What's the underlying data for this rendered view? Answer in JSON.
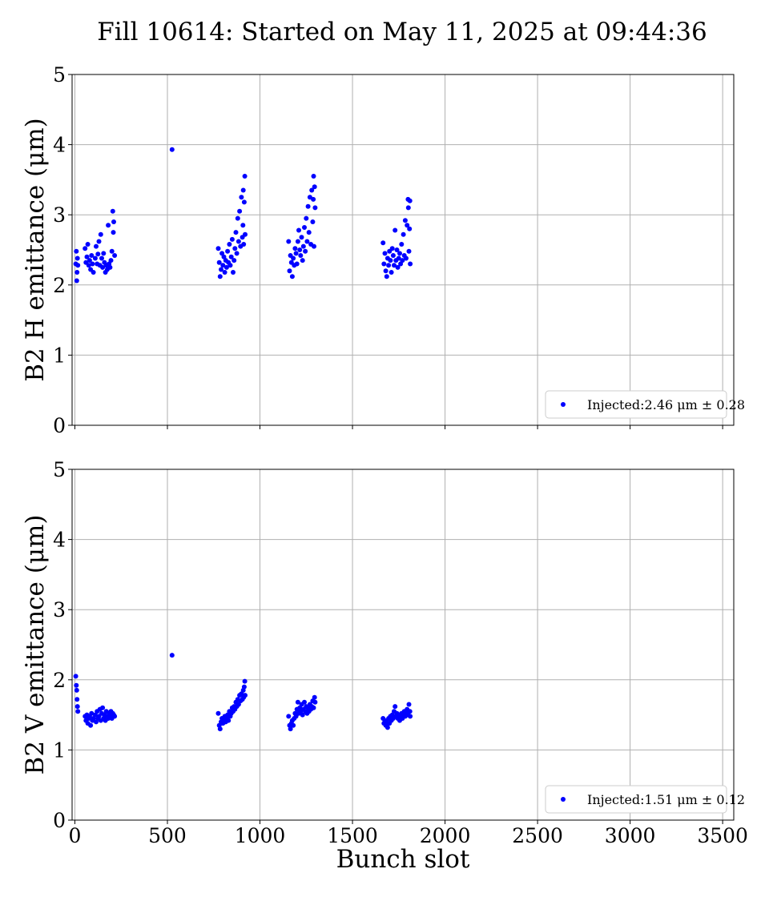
{
  "figure": {
    "title": "Fill 10614: Started on May 11, 2025 at 09:44:36",
    "xlabel": "Bunch slot"
  },
  "colors": {
    "series": "#0000ff",
    "grid": "#b0b0b0",
    "axes": "#000000"
  },
  "chart_data": [
    {
      "type": "scatter",
      "ylabel": "B2 H emittance (μm)",
      "xlim": [
        -15,
        3560
      ],
      "ylim": [
        0,
        5
      ],
      "xticks": [
        0,
        500,
        1000,
        1500,
        2000,
        2500,
        3000,
        3500
      ],
      "yticks": [
        0,
        1,
        2,
        3,
        4,
        5
      ],
      "show_xtick_labels": false,
      "grid": true,
      "legend": {
        "position": "lower-right",
        "label": "Injected:2.46 μm ± 0.28"
      },
      "series": [
        {
          "name": "Injected:2.46 μm ± 0.28",
          "points": [
            [
              5,
              2.3
            ],
            [
              8,
              2.48
            ],
            [
              10,
              2.06
            ],
            [
              12,
              2.18
            ],
            [
              14,
              2.38
            ],
            [
              16,
              2.28
            ],
            [
              55,
              2.52
            ],
            [
              60,
              2.32
            ],
            [
              65,
              2.4
            ],
            [
              70,
              2.58
            ],
            [
              75,
              2.28
            ],
            [
              80,
              2.35
            ],
            [
              85,
              2.22
            ],
            [
              90,
              2.42
            ],
            [
              95,
              2.3
            ],
            [
              100,
              2.18
            ],
            [
              110,
              2.38
            ],
            [
              115,
              2.55
            ],
            [
              120,
              2.3
            ],
            [
              125,
              2.44
            ],
            [
              130,
              2.62
            ],
            [
              135,
              2.28
            ],
            [
              140,
              2.72
            ],
            [
              145,
              2.38
            ],
            [
              150,
              2.25
            ],
            [
              155,
              2.45
            ],
            [
              160,
              2.32
            ],
            [
              165,
              2.18
            ],
            [
              170,
              2.28
            ],
            [
              175,
              2.22
            ],
            [
              180,
              2.85
            ],
            [
              185,
              2.3
            ],
            [
              190,
              2.25
            ],
            [
              195,
              2.35
            ],
            [
              200,
              2.48
            ],
            [
              205,
              3.05
            ],
            [
              208,
              2.75
            ],
            [
              210,
              2.9
            ],
            [
              215,
              2.42
            ],
            [
              525,
              3.93
            ],
            [
              775,
              2.52
            ],
            [
              780,
              2.32
            ],
            [
              785,
              2.12
            ],
            [
              790,
              2.22
            ],
            [
              795,
              2.45
            ],
            [
              800,
              2.28
            ],
            [
              805,
              2.4
            ],
            [
              810,
              2.18
            ],
            [
              815,
              2.35
            ],
            [
              820,
              2.25
            ],
            [
              825,
              2.48
            ],
            [
              830,
              2.32
            ],
            [
              835,
              2.58
            ],
            [
              840,
              2.28
            ],
            [
              845,
              2.4
            ],
            [
              850,
              2.65
            ],
            [
              855,
              2.18
            ],
            [
              860,
              2.35
            ],
            [
              865,
              2.52
            ],
            [
              870,
              2.75
            ],
            [
              875,
              2.45
            ],
            [
              880,
              2.95
            ],
            [
              885,
              2.62
            ],
            [
              890,
              3.05
            ],
            [
              895,
              2.55
            ],
            [
              900,
              3.25
            ],
            [
              905,
              2.68
            ],
            [
              908,
              2.85
            ],
            [
              910,
              3.35
            ],
            [
              912,
              2.58
            ],
            [
              915,
              3.18
            ],
            [
              918,
              3.55
            ],
            [
              920,
              2.72
            ],
            [
              1155,
              2.62
            ],
            [
              1160,
              2.2
            ],
            [
              1165,
              2.42
            ],
            [
              1170,
              2.32
            ],
            [
              1175,
              2.12
            ],
            [
              1180,
              2.38
            ],
            [
              1185,
              2.28
            ],
            [
              1190,
              2.52
            ],
            [
              1195,
              2.45
            ],
            [
              1200,
              2.3
            ],
            [
              1205,
              2.62
            ],
            [
              1210,
              2.78
            ],
            [
              1215,
              2.5
            ],
            [
              1220,
              2.42
            ],
            [
              1225,
              2.68
            ],
            [
              1230,
              2.35
            ],
            [
              1235,
              2.55
            ],
            [
              1240,
              2.82
            ],
            [
              1245,
              2.48
            ],
            [
              1250,
              2.95
            ],
            [
              1255,
              2.62
            ],
            [
              1260,
              3.12
            ],
            [
              1265,
              2.75
            ],
            [
              1270,
              3.25
            ],
            [
              1275,
              2.58
            ],
            [
              1280,
              3.35
            ],
            [
              1285,
              2.9
            ],
            [
              1288,
              3.22
            ],
            [
              1290,
              3.55
            ],
            [
              1292,
              2.55
            ],
            [
              1295,
              3.4
            ],
            [
              1298,
              3.1
            ],
            [
              1665,
              2.6
            ],
            [
              1670,
              2.3
            ],
            [
              1675,
              2.45
            ],
            [
              1680,
              2.2
            ],
            [
              1685,
              2.12
            ],
            [
              1690,
              2.38
            ],
            [
              1695,
              2.28
            ],
            [
              1700,
              2.48
            ],
            [
              1705,
              2.35
            ],
            [
              1710,
              2.18
            ],
            [
              1715,
              2.52
            ],
            [
              1720,
              2.42
            ],
            [
              1725,
              2.28
            ],
            [
              1730,
              2.78
            ],
            [
              1735,
              2.35
            ],
            [
              1740,
              2.5
            ],
            [
              1745,
              2.25
            ],
            [
              1750,
              2.38
            ],
            [
              1755,
              2.45
            ],
            [
              1760,
              2.3
            ],
            [
              1765,
              2.58
            ],
            [
              1770,
              2.35
            ],
            [
              1775,
              2.72
            ],
            [
              1780,
              2.42
            ],
            [
              1785,
              2.92
            ],
            [
              1790,
              2.38
            ],
            [
              1795,
              2.85
            ],
            [
              1800,
              3.22
            ],
            [
              1802,
              3.1
            ],
            [
              1805,
              2.48
            ],
            [
              1808,
              2.8
            ],
            [
              1810,
              3.2
            ],
            [
              1812,
              2.3
            ]
          ]
        }
      ]
    },
    {
      "type": "scatter",
      "ylabel": "B2 V emittance (μm)",
      "xlim": [
        -15,
        3560
      ],
      "ylim": [
        0,
        5
      ],
      "xticks": [
        0,
        500,
        1000,
        1500,
        2000,
        2500,
        3000,
        3500
      ],
      "yticks": [
        0,
        1,
        2,
        3,
        4,
        5
      ],
      "show_xtick_labels": true,
      "grid": true,
      "legend": {
        "position": "lower-right",
        "label": "Injected:1.51 μm ± 0.12"
      },
      "series": [
        {
          "name": "Injected:1.51 μm ± 0.12",
          "points": [
            [
              5,
              2.05
            ],
            [
              8,
              1.92
            ],
            [
              10,
              1.85
            ],
            [
              12,
              1.72
            ],
            [
              14,
              1.62
            ],
            [
              16,
              1.55
            ],
            [
              55,
              1.48
            ],
            [
              60,
              1.42
            ],
            [
              65,
              1.5
            ],
            [
              70,
              1.38
            ],
            [
              75,
              1.45
            ],
            [
              80,
              1.48
            ],
            [
              85,
              1.35
            ],
            [
              90,
              1.52
            ],
            [
              95,
              1.42
            ],
            [
              100,
              1.45
            ],
            [
              110,
              1.5
            ],
            [
              115,
              1.4
            ],
            [
              120,
              1.55
            ],
            [
              125,
              1.45
            ],
            [
              130,
              1.48
            ],
            [
              135,
              1.58
            ],
            [
              140,
              1.42
            ],
            [
              145,
              1.52
            ],
            [
              150,
              1.6
            ],
            [
              155,
              1.45
            ],
            [
              160,
              1.5
            ],
            [
              165,
              1.42
            ],
            [
              170,
              1.55
            ],
            [
              175,
              1.48
            ],
            [
              180,
              1.45
            ],
            [
              185,
              1.52
            ],
            [
              190,
              1.48
            ],
            [
              195,
              1.55
            ],
            [
              200,
              1.45
            ],
            [
              205,
              1.52
            ],
            [
              210,
              1.5
            ],
            [
              215,
              1.48
            ],
            [
              525,
              2.35
            ],
            [
              775,
              1.52
            ],
            [
              780,
              1.35
            ],
            [
              785,
              1.3
            ],
            [
              790,
              1.4
            ],
            [
              795,
              1.45
            ],
            [
              800,
              1.38
            ],
            [
              805,
              1.42
            ],
            [
              810,
              1.48
            ],
            [
              815,
              1.4
            ],
            [
              820,
              1.45
            ],
            [
              825,
              1.5
            ],
            [
              830,
              1.42
            ],
            [
              835,
              1.55
            ],
            [
              840,
              1.48
            ],
            [
              845,
              1.52
            ],
            [
              850,
              1.6
            ],
            [
              855,
              1.55
            ],
            [
              860,
              1.62
            ],
            [
              865,
              1.58
            ],
            [
              870,
              1.68
            ],
            [
              875,
              1.62
            ],
            [
              880,
              1.72
            ],
            [
              885,
              1.65
            ],
            [
              890,
              1.78
            ],
            [
              895,
              1.7
            ],
            [
              900,
              1.8
            ],
            [
              905,
              1.72
            ],
            [
              910,
              1.85
            ],
            [
              912,
              1.75
            ],
            [
              915,
              1.9
            ],
            [
              918,
              1.98
            ],
            [
              920,
              1.78
            ],
            [
              1155,
              1.48
            ],
            [
              1160,
              1.35
            ],
            [
              1165,
              1.3
            ],
            [
              1170,
              1.38
            ],
            [
              1175,
              1.42
            ],
            [
              1180,
              1.35
            ],
            [
              1185,
              1.45
            ],
            [
              1190,
              1.52
            ],
            [
              1195,
              1.48
            ],
            [
              1200,
              1.58
            ],
            [
              1205,
              1.68
            ],
            [
              1210,
              1.52
            ],
            [
              1215,
              1.6
            ],
            [
              1220,
              1.55
            ],
            [
              1225,
              1.65
            ],
            [
              1230,
              1.5
            ],
            [
              1235,
              1.58
            ],
            [
              1240,
              1.68
            ],
            [
              1245,
              1.55
            ],
            [
              1250,
              1.62
            ],
            [
              1255,
              1.52
            ],
            [
              1260,
              1.6
            ],
            [
              1265,
              1.55
            ],
            [
              1270,
              1.65
            ],
            [
              1275,
              1.58
            ],
            [
              1280,
              1.62
            ],
            [
              1285,
              1.7
            ],
            [
              1290,
              1.6
            ],
            [
              1295,
              1.75
            ],
            [
              1298,
              1.68
            ],
            [
              1665,
              1.45
            ],
            [
              1670,
              1.38
            ],
            [
              1675,
              1.42
            ],
            [
              1680,
              1.35
            ],
            [
              1685,
              1.4
            ],
            [
              1690,
              1.32
            ],
            [
              1695,
              1.45
            ],
            [
              1700,
              1.38
            ],
            [
              1705,
              1.48
            ],
            [
              1710,
              1.42
            ],
            [
              1715,
              1.5
            ],
            [
              1720,
              1.45
            ],
            [
              1725,
              1.55
            ],
            [
              1730,
              1.62
            ],
            [
              1735,
              1.48
            ],
            [
              1740,
              1.52
            ],
            [
              1745,
              1.45
            ],
            [
              1750,
              1.5
            ],
            [
              1755,
              1.42
            ],
            [
              1760,
              1.48
            ],
            [
              1765,
              1.52
            ],
            [
              1770,
              1.45
            ],
            [
              1775,
              1.5
            ],
            [
              1780,
              1.55
            ],
            [
              1785,
              1.48
            ],
            [
              1790,
              1.52
            ],
            [
              1795,
              1.58
            ],
            [
              1800,
              1.5
            ],
            [
              1805,
              1.65
            ],
            [
              1810,
              1.55
            ],
            [
              1812,
              1.48
            ]
          ]
        }
      ]
    }
  ]
}
